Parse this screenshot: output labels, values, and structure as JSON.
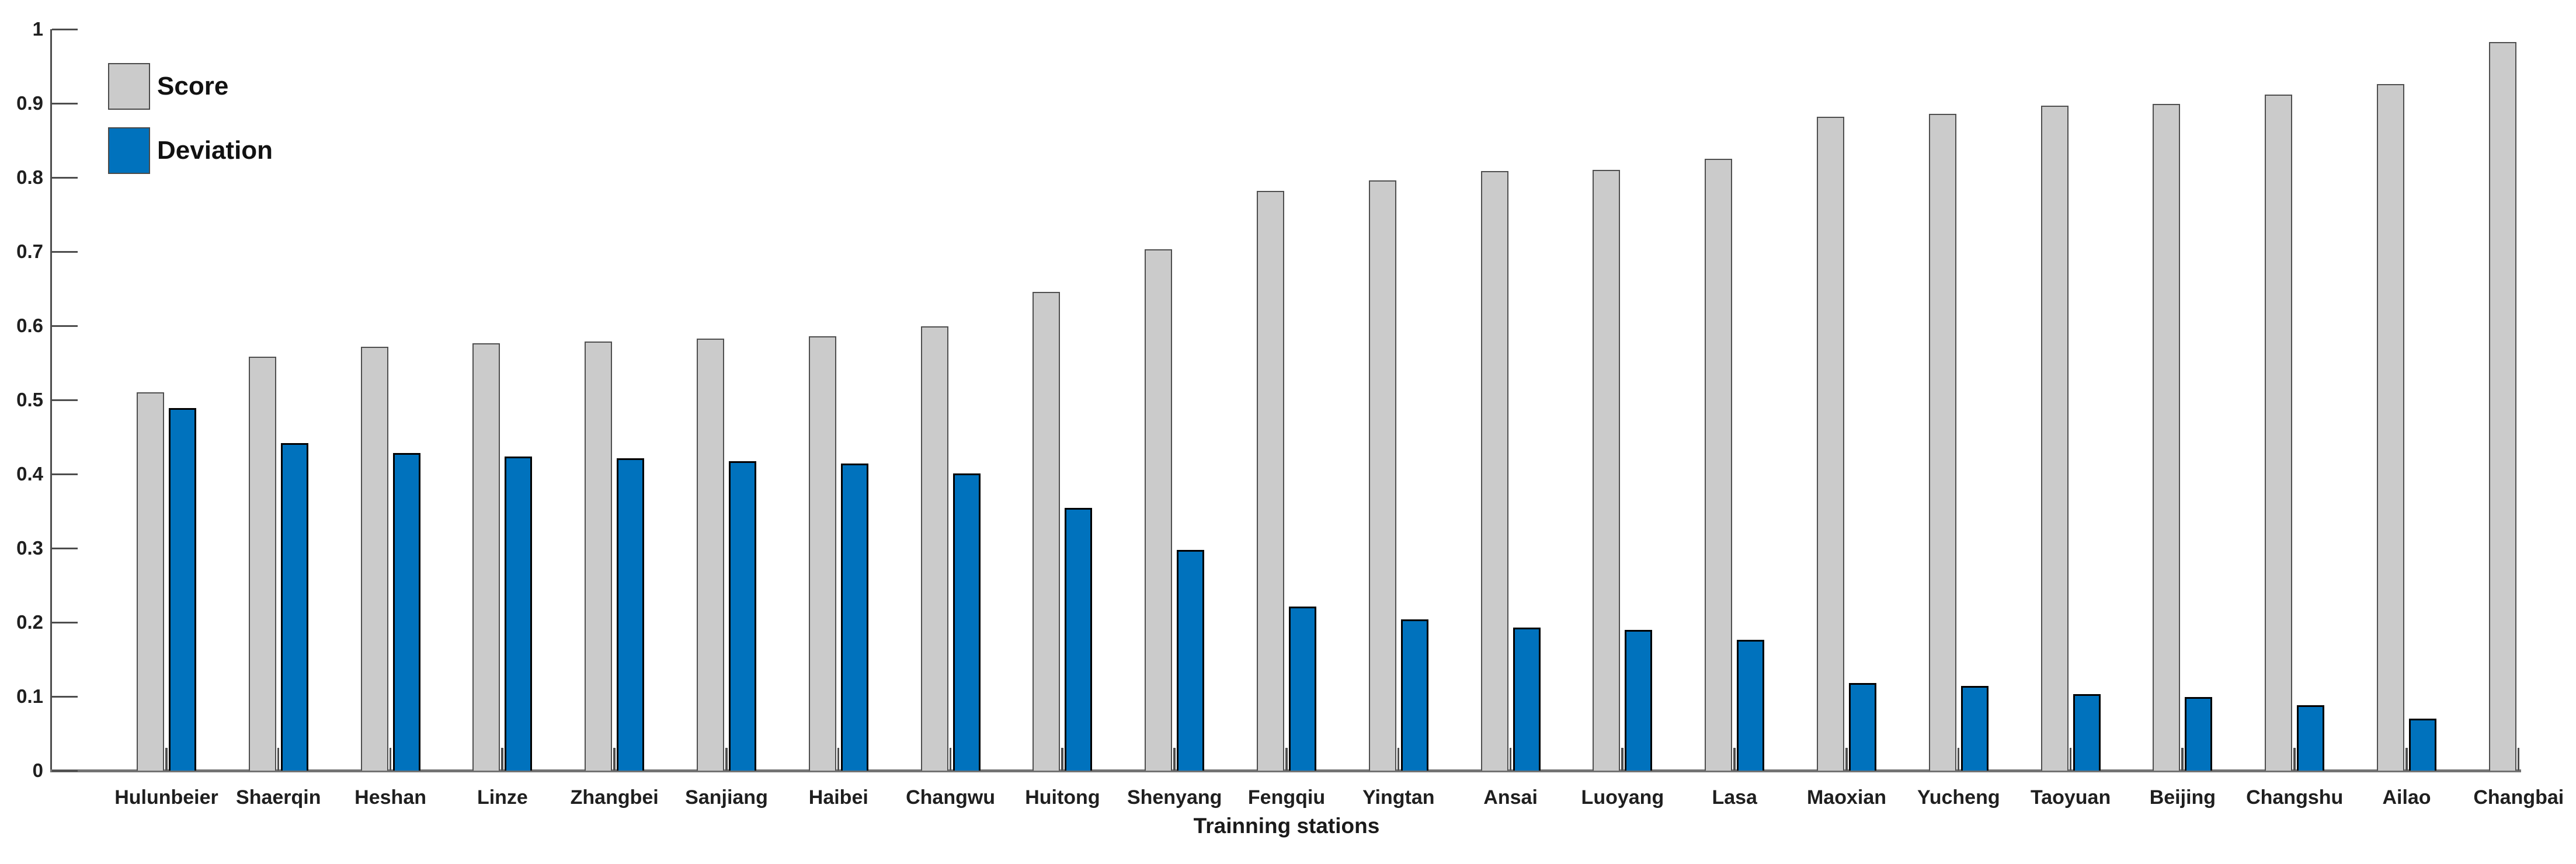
{
  "legend": {
    "items": [
      {
        "label": "Score",
        "color": "#cbcbcb"
      },
      {
        "label": "Deviation",
        "color": "#0072bd"
      }
    ]
  },
  "chart_data": {
    "type": "bar",
    "title": "",
    "xlabel": "Trainning stations",
    "ylabel": "",
    "ylim": [
      0,
      1
    ],
    "yticks": [
      0,
      0.1,
      0.2,
      0.3,
      0.4,
      0.5,
      0.6,
      0.7,
      0.8,
      0.9,
      1
    ],
    "grid": false,
    "legend_position": "top-left-inside",
    "categories": [
      "Hulunbeier",
      "Shaerqin",
      "Heshan",
      "Linze",
      "Zhangbei",
      "Sanjiang",
      "Haibei",
      "Changwu",
      "Huitong",
      "Shenyang",
      "Fengqiu",
      "Yingtan",
      "Ansai",
      "Luoyang",
      "Lasa",
      "Maoxian",
      "Yucheng",
      "Taoyuan",
      "Beijing",
      "Changshu",
      "Ailao",
      "Changbai"
    ],
    "series": [
      {
        "name": "Score",
        "color": "#cbcbcb",
        "values": [
          0.51,
          0.558,
          0.572,
          0.576,
          0.579,
          0.583,
          0.586,
          0.599,
          0.646,
          0.703,
          0.782,
          0.796,
          0.809,
          0.81,
          0.825,
          0.882,
          0.886,
          0.897,
          0.899,
          0.912,
          0.926,
          0.983
        ]
      },
      {
        "name": "Deviation",
        "color": "#0072bd",
        "values": [
          0.489,
          0.442,
          0.428,
          0.424,
          0.421,
          0.417,
          0.414,
          0.401,
          0.354,
          0.298,
          0.221,
          0.204,
          0.193,
          0.19,
          0.176,
          0.118,
          0.114,
          0.103,
          0.099,
          0.088,
          0.07,
          null
        ]
      }
    ],
    "gap_slivers": {
      "comment_visible_feature": "thin dark mark between the two bars of every group",
      "color": "#4d4d4d",
      "value": 0.031,
      "present_for_all_categories": true
    }
  }
}
